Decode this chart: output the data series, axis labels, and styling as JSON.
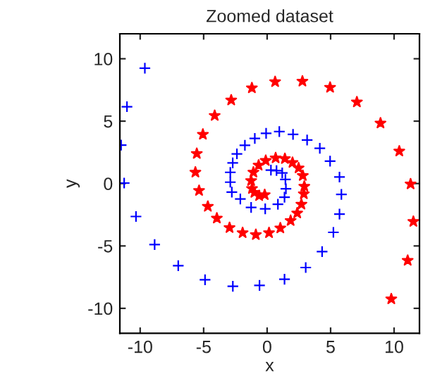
{
  "chart_data": {
    "type": "scatter",
    "title": "Zoomed dataset",
    "xlabel": "x",
    "ylabel": "y",
    "xlim": [
      -11.6,
      12
    ],
    "ylim": [
      -12,
      12
    ],
    "xticks": [
      -10,
      -5,
      0,
      5,
      10
    ],
    "yticks": [
      -10,
      -5,
      0,
      5,
      10
    ],
    "grid": false,
    "legend": false,
    "series": [
      {
        "color": "#0000ff",
        "marker": "cross",
        "x": [
          -9.63,
          -11.04,
          -11.5,
          -11.26,
          -10.33,
          -8.86,
          -7.0,
          -4.89,
          -2.7,
          -0.6,
          1.37,
          3.04,
          4.33,
          5.22,
          5.7,
          5.85,
          5.7,
          4.96,
          4.15,
          3.15,
          2.04,
          0.96,
          -0.08,
          -0.97,
          -1.75,
          -2.38,
          -2.71,
          -2.9,
          -2.9,
          -2.78,
          -2.11,
          -1.26,
          -0.15,
          0.85,
          1.37,
          1.48,
          1.44,
          1.19,
          0.74,
          0.3
        ],
        "values": [
          9.24,
          6.16,
          3.08,
          0.04,
          -2.64,
          -4.89,
          -6.58,
          -7.71,
          -8.23,
          -8.16,
          -7.67,
          -6.73,
          -5.45,
          -3.91,
          -2.45,
          -0.87,
          0.52,
          1.8,
          2.82,
          3.49,
          3.94,
          4.17,
          4.03,
          3.62,
          3.06,
          2.38,
          1.65,
          0.9,
          0.11,
          -0.69,
          -1.24,
          -1.92,
          -2.03,
          -1.66,
          -1.09,
          -0.42,
          0.33,
          0.85,
          1.04,
          1.08
        ]
      },
      {
        "color": "#ff0000",
        "marker": "star",
        "x": [
          9.78,
          11.07,
          11.52,
          11.3,
          10.41,
          8.93,
          7.07,
          4.96,
          2.78,
          0.63,
          -1.2,
          -2.83,
          -4.13,
          -5.06,
          -5.54,
          -5.65,
          -5.36,
          -4.67,
          -3.96,
          -2.96,
          -1.93,
          -0.89,
          0.15,
          1.04,
          1.85,
          2.37,
          2.7,
          2.89,
          2.93,
          2.81,
          2.48,
          2.0,
          1.4,
          0.67,
          -0.11,
          -0.67,
          -1.08,
          -1.26,
          -1.19,
          -1.0,
          -0.63,
          -0.19
        ],
        "values": [
          -9.25,
          -6.17,
          -3.05,
          -0.04,
          2.59,
          4.84,
          6.53,
          7.7,
          8.19,
          8.15,
          7.66,
          6.68,
          5.44,
          3.94,
          2.4,
          0.9,
          -0.57,
          -1.84,
          -2.78,
          -3.54,
          -3.95,
          -4.1,
          -3.95,
          -3.57,
          -2.97,
          -2.37,
          -1.66,
          -0.83,
          -0.23,
          0.63,
          1.24,
          1.68,
          1.99,
          2.05,
          1.84,
          1.46,
          0.9,
          0.23,
          -0.41,
          -0.72,
          -0.98,
          -0.9
        ]
      }
    ]
  }
}
